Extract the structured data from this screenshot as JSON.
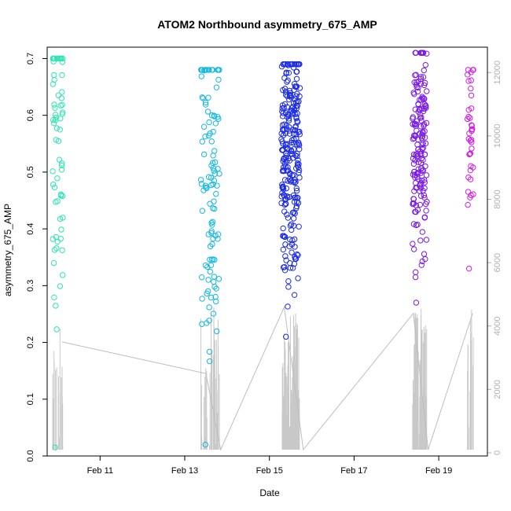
{
  "chart_data": {
    "type": "scatter",
    "title": "ATOM2 Northbound asymmetry_675_AMP",
    "xlabel": "Date",
    "ylabel": "asymmetry_675_AMP",
    "x_unit": "days (Feb)",
    "xlim": [
      9.75,
      20.15
    ],
    "ylim": [
      0.0,
      0.72
    ],
    "y2lim": [
      -100,
      12800
    ],
    "x_ticks": [
      {
        "value": 11,
        "label": "Feb 11"
      },
      {
        "value": 13,
        "label": "Feb 13"
      },
      {
        "value": 15,
        "label": "Feb 15"
      },
      {
        "value": 17,
        "label": "Feb 17"
      },
      {
        "value": 19,
        "label": "Feb 19"
      }
    ],
    "y_ticks": [
      {
        "value": 0.0,
        "label": "0.0"
      },
      {
        "value": 0.1,
        "label": "0.1"
      },
      {
        "value": 0.2,
        "label": "0.2"
      },
      {
        "value": 0.3,
        "label": "0.3"
      },
      {
        "value": 0.4,
        "label": "0.4"
      },
      {
        "value": 0.5,
        "label": "0.5"
      },
      {
        "value": 0.6,
        "label": "0.6"
      },
      {
        "value": 0.7,
        "label": "0.7"
      }
    ],
    "y2_ticks": [
      {
        "value": 0,
        "label": "0"
      },
      {
        "value": 2000,
        "label": "2000"
      },
      {
        "value": 4000,
        "label": "4000"
      },
      {
        "value": 6000,
        "label": "6000"
      },
      {
        "value": 8000,
        "label": "8000"
      },
      {
        "value": 10000,
        "label": "10000"
      },
      {
        "value": 12000,
        "label": "12000"
      }
    ],
    "groups": [
      {
        "center": 10.0,
        "spread": 0.12,
        "count": 70,
        "color": "#2ee6b0",
        "ymin": 0.015,
        "ymax": 0.7,
        "ymean": 0.58,
        "seed": 11
      },
      {
        "center": 13.6,
        "spread": 0.22,
        "count": 110,
        "color": "#14b8e0",
        "ymin": 0.02,
        "ymax": 0.68,
        "ymean": 0.5,
        "seed": 23
      },
      {
        "center": 15.5,
        "spread": 0.22,
        "count": 260,
        "color": "#1a2ae6",
        "ymin": 0.21,
        "ymax": 0.69,
        "ymean": 0.54,
        "seed": 37
      },
      {
        "center": 18.55,
        "spread": 0.17,
        "count": 170,
        "color": "#7a1ae6",
        "ymin": 0.27,
        "ymax": 0.71,
        "ymean": 0.55,
        "seed": 53
      },
      {
        "center": 19.75,
        "spread": 0.07,
        "count": 40,
        "color": "#d31ae6",
        "ymin": 0.33,
        "ymax": 0.68,
        "ymean": 0.57,
        "seed": 71
      }
    ],
    "altitude_trace": [
      {
        "x": 10.1,
        "y2": 3500
      },
      {
        "x": 13.5,
        "y2": 2500
      },
      {
        "x": 13.85,
        "y2": 100
      },
      {
        "x": 15.35,
        "y2": 4600
      },
      {
        "x": 15.8,
        "y2": 100
      },
      {
        "x": 18.4,
        "y2": 4400
      },
      {
        "x": 18.75,
        "y2": 100
      },
      {
        "x": 19.8,
        "y2": 4400
      }
    ]
  }
}
